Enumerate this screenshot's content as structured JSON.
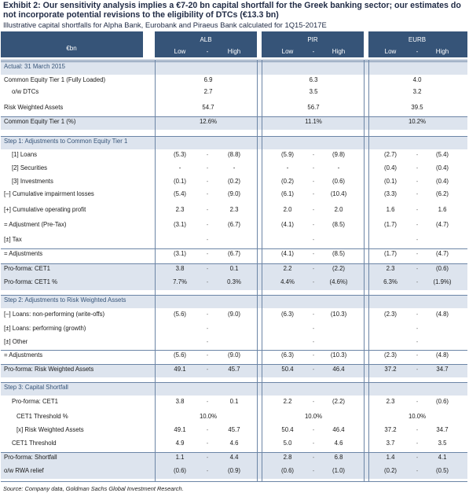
{
  "exhibit": {
    "title": "Exhibit 2: Our sensitivity analysis implies a €7-20 bn capital shortfall for the Greek banking sector; our estimates do not incorporate potential revisions to the eligibility of DTCs (€13.3 bn)",
    "subtitle": "Illustrative capital shortfalls for Alpha Bank, Eurobank and Piraeus Bank calculated for 1Q15-2017E",
    "source": "Source: Company data, Goldman Sachs Global Investment Research."
  },
  "header": {
    "unit": "€bn",
    "banks": [
      {
        "name": "ALB",
        "low": "Low",
        "mid": "-",
        "high": "High"
      },
      {
        "name": "PIR",
        "low": "Low",
        "mid": "-",
        "high": "High"
      },
      {
        "name": "EURB",
        "low": "Low",
        "mid": "-",
        "high": "High"
      }
    ]
  },
  "rows": [
    {
      "label": "Actual: 31 March 2015",
      "type": "section",
      "vals": []
    },
    {
      "label": "Common Equity Tier 1 (Fully Loaded)",
      "type": "center",
      "vals": [
        "6.9",
        "6.3",
        "4.0"
      ]
    },
    {
      "label": "o/w DTCs",
      "type": "center",
      "indent": true,
      "vals": [
        "2.7",
        "3.5",
        "3.2"
      ]
    },
    {
      "label": "Risk Weighted Assets",
      "type": "center",
      "vals": [
        "54.7",
        "56.7",
        "39.5"
      ]
    },
    {
      "label": "Common Equity Tier 1  (%)",
      "type": "center",
      "vals": [
        "12.6%",
        "11.1%",
        "10.2%"
      ]
    },
    {
      "label": "Step 1: Adjustments to Common Equity Tier 1",
      "type": "section",
      "vals": []
    },
    {
      "label": "[1] Loans",
      "type": "triple",
      "indent": true,
      "vals": [
        "(5.3)",
        "-",
        "(8.8)",
        "(5.9)",
        "-",
        "(9.8)",
        "(2.7)",
        "-",
        "(5.4)"
      ]
    },
    {
      "label": "[2] Securities",
      "type": "triple",
      "indent": true,
      "vals": [
        "-",
        "-",
        "-",
        "-",
        "-",
        "-",
        "(0.4)",
        "-",
        "(0.4)"
      ]
    },
    {
      "label": "[3] Investments",
      "type": "triple",
      "indent": true,
      "vals": [
        "(0.1)",
        "-",
        "(0.2)",
        "(0.2)",
        "-",
        "(0.6)",
        "(0.1)",
        "-",
        "(0.4)"
      ]
    },
    {
      "label": "[–] Cumulative impairment losses",
      "type": "triple",
      "vals": [
        "(5.4)",
        "-",
        "(9.0)",
        "(6.1)",
        "-",
        "(10.4)",
        "(3.3)",
        "-",
        "(6.2)"
      ]
    },
    {
      "label": "[+] Cumulative operating profit",
      "type": "triple",
      "vals": [
        "2.3",
        "-",
        "2.3",
        "2.0",
        "-",
        "2.0",
        "1.6",
        "-",
        "1.6"
      ]
    },
    {
      "label": "= Adjustment (Pre-Tax)",
      "type": "triple",
      "vals": [
        "(3.1)",
        "-",
        "(6.7)",
        "(4.1)",
        "-",
        "(8.5)",
        "(1.7)",
        "-",
        "(4.7)"
      ]
    },
    {
      "label": "[±] Tax",
      "type": "triple",
      "vals": [
        "",
        "-",
        "",
        "",
        "-",
        "",
        "",
        "-",
        ""
      ]
    },
    {
      "label": "= Adjustments",
      "type": "triple",
      "vals": [
        "(3.1)",
        "-",
        "(6.7)",
        "(4.1)",
        "-",
        "(8.5)",
        "(1.7)",
        "-",
        "(4.7)"
      ]
    },
    {
      "label": "Pro-forma: CET1",
      "type": "triple",
      "vals": [
        "3.8",
        "-",
        "0.1",
        "2.2",
        "-",
        "(2.2)",
        "2.3",
        "-",
        "(0.6)"
      ]
    },
    {
      "label": "Pro-forma: CET1  %",
      "type": "triple",
      "vals": [
        "7.7%",
        "-",
        "0.3%",
        "4.4%",
        "-",
        "(4.6%)",
        "6.3%",
        "-",
        "(1.9%)"
      ]
    },
    {
      "label": "Step 2: Adjustments to Risk Weighted Assets",
      "type": "section",
      "vals": []
    },
    {
      "label": "[–] Loans: non-performing (write-offs)",
      "type": "triple",
      "vals": [
        "(5.6)",
        "-",
        "(9.0)",
        "(6.3)",
        "-",
        "(10.3)",
        "(2.3)",
        "-",
        "(4.8)"
      ]
    },
    {
      "label": "[±] Loans: performing (growth)",
      "type": "triple",
      "vals": [
        "",
        "-",
        "",
        "",
        "-",
        "",
        "",
        "-",
        ""
      ]
    },
    {
      "label": "[±] Other",
      "type": "triple",
      "vals": [
        "",
        "-",
        "",
        "",
        "-",
        "",
        "",
        "-",
        ""
      ]
    },
    {
      "label": "= Adjustments",
      "type": "triple",
      "vals": [
        "(5.6)",
        "-",
        "(9.0)",
        "(6.3)",
        "-",
        "(10.3)",
        "(2.3)",
        "-",
        "(4.8)"
      ]
    },
    {
      "label": "Pro-forma: Risk Weighted Assets",
      "type": "triple",
      "vals": [
        "49.1",
        "-",
        "45.7",
        "50.4",
        "-",
        "46.4",
        "37.2",
        "-",
        "34.7"
      ]
    },
    {
      "label": "Step 3: Capital Shortfall",
      "type": "section",
      "vals": []
    },
    {
      "label": "Pro-forma: CET1",
      "type": "triple",
      "indent": true,
      "vals": [
        "3.8",
        "-",
        "0.1",
        "2.2",
        "-",
        "(2.2)",
        "2.3",
        "-",
        "(0.6)"
      ]
    },
    {
      "label": "CET1 Threshold %",
      "type": "center",
      "indent2": true,
      "vals": [
        "10.0%",
        "10.0%",
        "10.0%"
      ]
    },
    {
      "label": "[x] Risk Weighted Assets",
      "type": "triple",
      "indent2": true,
      "vals": [
        "49.1",
        "-",
        "45.7",
        "50.4",
        "-",
        "46.4",
        "37.2",
        "-",
        "34.7"
      ]
    },
    {
      "label": "CET1 Threshold",
      "type": "triple",
      "indent": true,
      "vals": [
        "4.9",
        "-",
        "4.6",
        "5.0",
        "-",
        "4.6",
        "3.7",
        "-",
        "3.5"
      ]
    },
    {
      "label": "Pro-forma: Shortfall",
      "type": "triple",
      "vals": [
        "1.1",
        "-",
        "4.4",
        "2.8",
        "-",
        "6.8",
        "1.4",
        "-",
        "4.1"
      ]
    },
    {
      "label": "o/w RWA relief",
      "type": "triple",
      "vals": [
        "(0.6)",
        "-",
        "(0.9)",
        "(0.6)",
        "-",
        "(1.0)",
        "(0.2)",
        "-",
        "(0.5)"
      ]
    }
  ]
}
